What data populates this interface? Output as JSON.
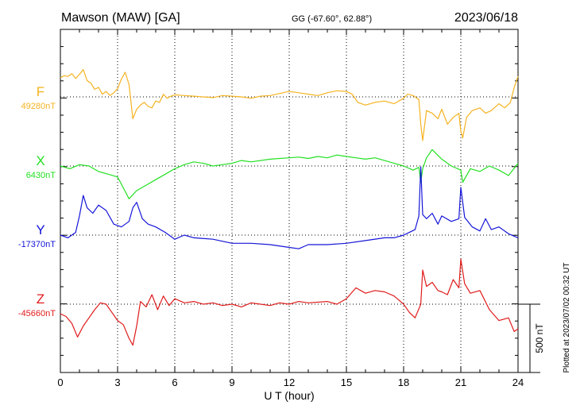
{
  "header": {
    "station": "Mawson (MAW)  [GA]",
    "coords": "GG (-67.60°,  62.88°)",
    "date": "2023/06/18"
  },
  "footer": {
    "plotted": "Plotted at 2023/07/02 00:32 UT"
  },
  "chart_data": {
    "type": "line",
    "xlabel": "U T (hour)",
    "xlim": [
      0,
      24
    ],
    "xticks": [
      0,
      3,
      6,
      9,
      12,
      15,
      18,
      21,
      24
    ],
    "scale_bar": "500 nT",
    "grid": true,
    "series": [
      {
        "name": "F",
        "baseline_label": "49280nT",
        "color": "#f5b321",
        "x": [
          0,
          0.2,
          0.4,
          0.6,
          0.8,
          1.0,
          1.2,
          1.4,
          1.6,
          1.8,
          2.0,
          2.2,
          2.4,
          2.6,
          2.8,
          3.0,
          3.2,
          3.4,
          3.6,
          3.8,
          4.0,
          4.2,
          4.4,
          4.6,
          4.8,
          5.0,
          5.2,
          5.4,
          5.6,
          5.8,
          6.0,
          6.5,
          7,
          7.5,
          8,
          8.5,
          9,
          9.5,
          10,
          10.5,
          11,
          11.5,
          12,
          12.5,
          13,
          13.5,
          14,
          14.5,
          15,
          15.3,
          15.6,
          16,
          16.5,
          17,
          17.5,
          18,
          18.2,
          18.5,
          18.8,
          18.9,
          19.0,
          19.2,
          19.5,
          19.8,
          20.0,
          20.3,
          20.6,
          20.9,
          21.0,
          21.1,
          21.3,
          21.6,
          22.0,
          22.3,
          22.6,
          23.0,
          23.3,
          23.6,
          23.8,
          24.0
        ],
        "y": [
          140,
          155,
          150,
          170,
          135,
          165,
          200,
          120,
          100,
          55,
          70,
          20,
          40,
          10,
          30,
          60,
          130,
          180,
          90,
          -160,
          -90,
          -60,
          -40,
          -70,
          -80,
          -30,
          -40,
          20,
          -10,
          5,
          15,
          10,
          5,
          0,
          -5,
          10,
          5,
          0,
          -10,
          5,
          10,
          25,
          40,
          30,
          20,
          10,
          30,
          45,
          40,
          20,
          -40,
          -60,
          -40,
          -30,
          -50,
          -10,
          20,
          10,
          -20,
          -200,
          -320,
          -100,
          -120,
          -160,
          -90,
          -200,
          -150,
          -120,
          -250,
          -300,
          -150,
          -100,
          -80,
          -120,
          -100,
          -50,
          -80,
          -40,
          70,
          150
        ]
      },
      {
        "name": "X",
        "baseline_label": "6430nT",
        "color": "#22e022",
        "x": [
          0,
          0.5,
          1.0,
          1.5,
          2.0,
          2.5,
          3.0,
          3.3,
          3.6,
          4.0,
          4.5,
          5.0,
          5.5,
          6.0,
          6.5,
          7,
          7.5,
          8,
          8.5,
          9,
          9.5,
          10,
          11,
          12,
          12.5,
          13,
          13.5,
          14,
          14.5,
          15,
          15.5,
          16,
          16.5,
          17,
          17.5,
          18,
          18.5,
          18.8,
          18.9,
          19.0,
          19.2,
          19.5,
          20,
          20.5,
          21.0,
          21.1,
          21.5,
          22,
          22.5,
          23,
          23.5,
          24
        ],
        "y": [
          0,
          -20,
          10,
          0,
          -40,
          -60,
          -80,
          -160,
          -240,
          -180,
          -140,
          -100,
          -60,
          -20,
          10,
          30,
          20,
          0,
          10,
          20,
          40,
          30,
          50,
          60,
          65,
          55,
          70,
          60,
          80,
          70,
          60,
          50,
          60,
          40,
          20,
          0,
          -30,
          -10,
          -120,
          -20,
          60,
          120,
          50,
          0,
          -30,
          -120,
          -20,
          -40,
          0,
          -30,
          -70,
          20
        ]
      },
      {
        "name": "Y",
        "baseline_label": "-17370nT",
        "color": "#1515d8",
        "x": [
          0,
          0.4,
          0.8,
          1.0,
          1.2,
          1.4,
          1.7,
          2.0,
          2.4,
          2.8,
          3.2,
          3.6,
          3.8,
          4.0,
          4.3,
          4.6,
          5.0,
          5.5,
          6.0,
          6.5,
          7,
          8,
          9,
          10,
          11,
          12,
          12.5,
          13,
          14,
          15,
          16,
          17,
          17.5,
          18,
          18.3,
          18.6,
          18.8,
          18.9,
          19.0,
          19.2,
          19.5,
          19.8,
          20,
          20.5,
          20.9,
          21.0,
          21.2,
          21.6,
          22,
          22.3,
          22.6,
          23,
          23.5,
          24
        ],
        "y": [
          0,
          -20,
          20,
          140,
          290,
          200,
          160,
          220,
          180,
          80,
          60,
          100,
          200,
          240,
          120,
          80,
          60,
          20,
          -30,
          0,
          -20,
          -30,
          -60,
          -60,
          -70,
          -90,
          -100,
          -70,
          -70,
          -60,
          -40,
          -20,
          -20,
          0,
          20,
          40,
          140,
          500,
          150,
          120,
          160,
          80,
          140,
          100,
          120,
          350,
          130,
          60,
          30,
          120,
          40,
          60,
          10,
          -20
        ]
      },
      {
        "name": "Z",
        "baseline_label": "-45660nT",
        "color": "#e01b1b",
        "x": [
          0,
          0.3,
          0.6,
          0.9,
          1.2,
          1.5,
          1.8,
          2.1,
          2.4,
          2.7,
          3.0,
          3.3,
          3.6,
          3.8,
          4.0,
          4.2,
          4.5,
          4.8,
          5.1,
          5.4,
          5.7,
          6.0,
          6.5,
          7,
          7.5,
          8,
          8.5,
          9,
          9.5,
          10,
          10.5,
          11,
          11.5,
          12,
          12.5,
          13,
          14,
          14.5,
          15,
          15.5,
          16,
          16.5,
          17,
          17.5,
          18,
          18.3,
          18.6,
          18.9,
          19.0,
          19.2,
          19.5,
          19.8,
          20.0,
          20.3,
          20.6,
          20.9,
          21.0,
          21.2,
          21.5,
          22,
          22.5,
          23,
          23.5,
          23.8,
          24.0
        ],
        "y": [
          -70,
          -90,
          -140,
          -240,
          -160,
          -100,
          -40,
          10,
          0,
          -60,
          -120,
          -150,
          -250,
          -300,
          -160,
          20,
          -20,
          70,
          -40,
          60,
          -10,
          40,
          10,
          20,
          0,
          10,
          -10,
          0,
          -20,
          10,
          0,
          -10,
          10,
          0,
          20,
          10,
          20,
          0,
          40,
          120,
          80,
          100,
          90,
          60,
          0,
          -60,
          -100,
          0,
          250,
          130,
          160,
          100,
          90,
          70,
          180,
          120,
          330,
          150,
          80,
          100,
          -40,
          -120,
          -100,
          -200,
          -180
        ]
      }
    ]
  }
}
